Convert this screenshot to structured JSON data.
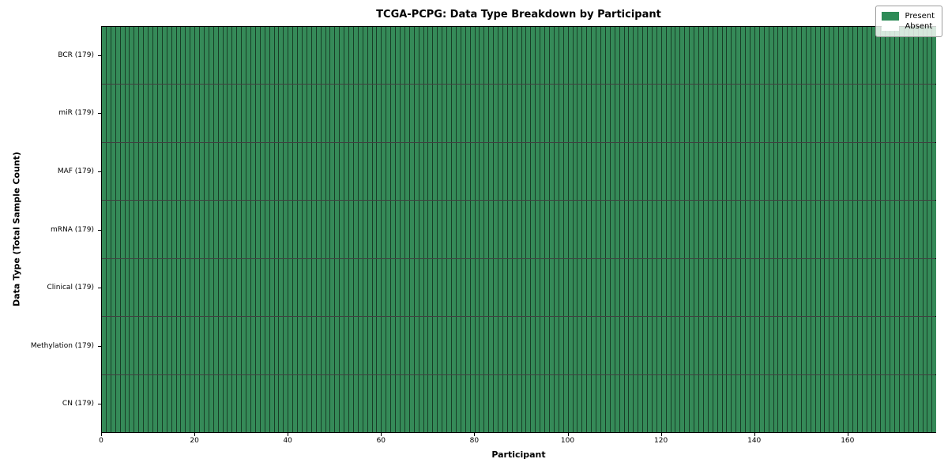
{
  "chart_data": {
    "type": "heatmap",
    "title": "TCGA-PCPG: Data Type Breakdown by Participant",
    "xlabel": "Participant",
    "ylabel": "Data Type (Total Sample Count)",
    "rows": [
      "BCR (179)",
      "miR (179)",
      "MAF (179)",
      "mRNA (179)",
      "Clinical (179)",
      "Methylation (179)",
      "CN (179)"
    ],
    "row_names": [
      "BCR",
      "miR",
      "MAF",
      "mRNA",
      "Clinical",
      "Methylation",
      "CN"
    ],
    "total_per_row": 179,
    "n_participants": 179,
    "series": [
      {
        "name": "BCR (179)",
        "present": 179,
        "absent": 0
      },
      {
        "name": "miR (179)",
        "present": 179,
        "absent": 0
      },
      {
        "name": "MAF (179)",
        "present": 179,
        "absent": 0
      },
      {
        "name": "mRNA (179)",
        "present": 179,
        "absent": 0
      },
      {
        "name": "Clinical (179)",
        "present": 179,
        "absent": 0
      },
      {
        "name": "Methylation (179)",
        "present": 179,
        "absent": 0
      },
      {
        "name": "CN (179)",
        "present": 179,
        "absent": 0
      }
    ],
    "x_range": [
      0,
      179
    ],
    "xticks": [
      0,
      20,
      40,
      60,
      80,
      100,
      120,
      140,
      160
    ],
    "legend": [
      {
        "label": "Present",
        "color": "#2e8b57"
      },
      {
        "label": "Absent",
        "color": "#ffffff"
      }
    ],
    "colors": {
      "present": "#358a58",
      "absent": "#ffffff",
      "cell_grid_line": "rgba(0,0,0,0.55)",
      "row_grid_line": "rgba(0,0,0,0.75)",
      "spine": "#000000"
    },
    "grid": true,
    "legend_position": "top-right"
  }
}
